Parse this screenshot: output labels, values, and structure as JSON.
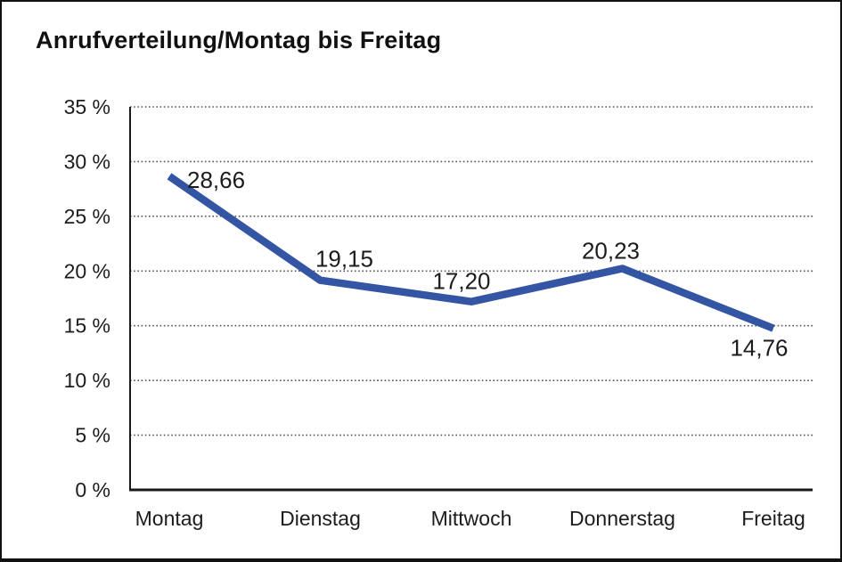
{
  "page": {
    "title": "Anrufverteilung/Montag bis Freitag"
  },
  "colors": {
    "background": "#ffffff",
    "frame_border": "#111111",
    "line": "#3355a3",
    "grid": "#555555",
    "axis": "#1a1a1a",
    "text": "#1c1c1c"
  },
  "chart_data": {
    "type": "line",
    "title": "Anrufverteilung/Montag bis Freitag",
    "categories": [
      "Montag",
      "Dienstag",
      "Mittwoch",
      "Donnerstag",
      "Freitag"
    ],
    "values": [
      28.66,
      19.15,
      17.2,
      20.23,
      14.76
    ],
    "value_labels": [
      "28,66",
      "19,15",
      "17,20",
      "20,23",
      "14,76"
    ],
    "xlabel": "",
    "ylabel": "",
    "ylim": [
      0,
      35
    ],
    "ytick_step": 5,
    "ytick_labels": [
      "0 %",
      "5 %",
      "10 %",
      "15 %",
      "20 %",
      "25 %",
      "30 %",
      "35 %"
    ],
    "grid": "horizontal dotted",
    "legend": "none",
    "decimal_separator": ","
  }
}
